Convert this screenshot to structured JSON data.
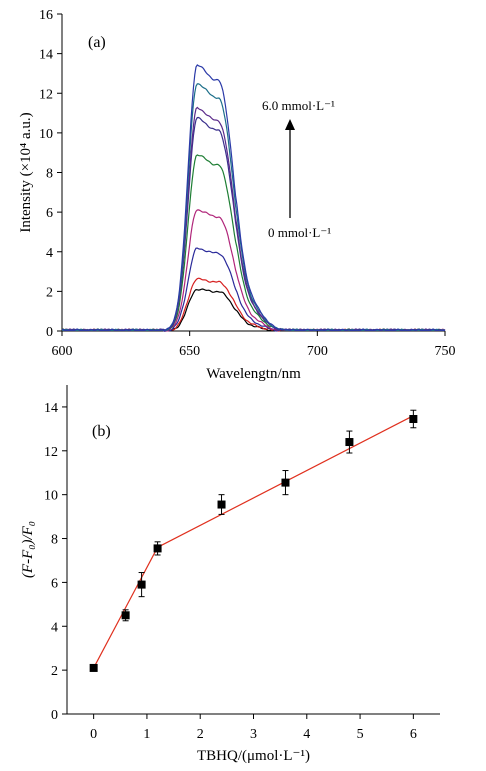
{
  "chart_data": [
    {
      "type": "line",
      "panel_label": "(a)",
      "xlabel": "Wavelengtn/nm",
      "ylabel": "Intensity (×10⁴ a.u.)",
      "xlim": [
        600,
        750
      ],
      "ylim": [
        0,
        16
      ],
      "xticks": [
        600,
        650,
        700,
        750
      ],
      "yticks": [
        0,
        2,
        4,
        6,
        8,
        10,
        12,
        14,
        16
      ],
      "grid": false,
      "annotations": {
        "top": "6.0 mmol·L⁻¹",
        "bottom": "0 mmol·L⁻¹",
        "arrow": "increasing concentration (upward)"
      },
      "peak_wavelength": 655,
      "series": [
        {
          "color": "#000000",
          "peak": 2.05
        },
        {
          "color": "#d62020",
          "peak": 2.55
        },
        {
          "color": "#2a2a9a",
          "peak": 4.05
        },
        {
          "color": "#b0267a",
          "peak": 5.95
        },
        {
          "color": "#1e7e34",
          "peak": 8.65
        },
        {
          "color": "#3a2f8c",
          "peak": 10.45
        },
        {
          "color": "#5a2a8a",
          "peak": 10.95
        },
        {
          "color": "#1d6f8a",
          "peak": 12.15
        },
        {
          "color": "#2b3aa8",
          "peak": 13.05
        }
      ]
    },
    {
      "type": "scatter",
      "panel_label": "(b)",
      "xlabel": "TBHQ/(μmol·L⁻¹)",
      "ylabel": "(F-F₀)/F₀",
      "xlim": [
        -0.5,
        6.5
      ],
      "ylim": [
        0,
        15
      ],
      "xticks": [
        0,
        1,
        2,
        3,
        4,
        5,
        6
      ],
      "yticks": [
        0,
        2,
        4,
        6,
        8,
        10,
        12,
        14
      ],
      "grid": false,
      "fit_line_color": "#e0301e",
      "points": [
        {
          "x": 0,
          "y": 2.1,
          "err": 0.12
        },
        {
          "x": 0.6,
          "y": 4.5,
          "err": 0.25
        },
        {
          "x": 0.9,
          "y": 5.9,
          "err": 0.55
        },
        {
          "x": 1.2,
          "y": 7.55,
          "err": 0.3
        },
        {
          "x": 2.4,
          "y": 9.55,
          "err": 0.45
        },
        {
          "x": 3.6,
          "y": 10.55,
          "err": 0.55
        },
        {
          "x": 4.8,
          "y": 12.4,
          "err": 0.5
        },
        {
          "x": 6.0,
          "y": 13.45,
          "err": 0.4
        }
      ],
      "fit_segments": [
        {
          "x": [
            0,
            1.2
          ],
          "y": [
            2.1,
            7.6
          ]
        },
        {
          "x": [
            1.2,
            6.0
          ],
          "y": [
            7.6,
            13.6
          ]
        }
      ]
    }
  ]
}
